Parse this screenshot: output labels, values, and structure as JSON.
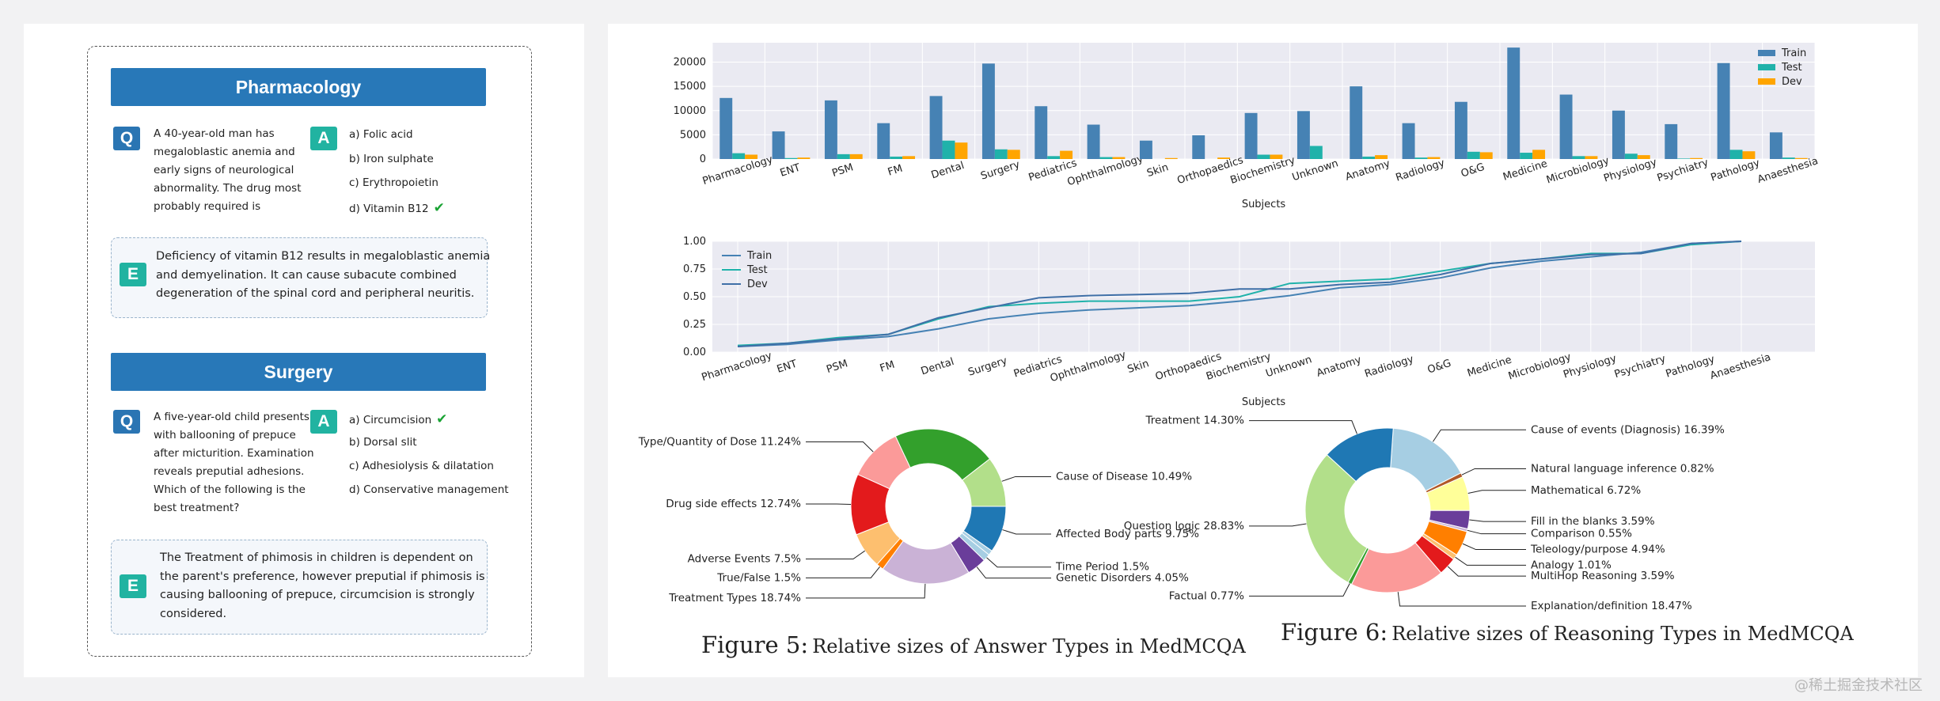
{
  "left": {
    "cards": [
      {
        "banner": "Pharmacology",
        "q_badge": "Q",
        "question_lines": [
          "A 40-year-old man has",
          "megaloblastic anemia and",
          "early signs of neurological",
          "abnormality. The drug most",
          "probably required is"
        ],
        "a_badge": "A",
        "options": [
          "a) Folic acid",
          "b) Iron sulphate",
          "c) Erythropoietin",
          "d) Vitamin B12"
        ],
        "correct_index": 3,
        "e_badge": "E",
        "explanation_lines": [
          "Deficiency of vitamin B12 results in megaloblastic anemia",
          "and demyelination. It can cause subacute combined",
          "degeneration of the spinal cord and peripheral neuritis."
        ]
      },
      {
        "banner": "Surgery",
        "q_badge": "Q",
        "question_lines": [
          "A five-year-old child presents",
          "with ballooning of prepuce",
          "after micturition. Examination",
          "reveals preputial adhesions.",
          "Which of the following is the",
          "best treatment?"
        ],
        "a_badge": "A",
        "options": [
          "a) Circumcision",
          "b) Dorsal slit",
          "c) Adhesiolysis & dilatation",
          "d) Conservative management"
        ],
        "correct_index": 0,
        "e_badge": "E",
        "explanation_lines": [
          "The Treatment of phimosis in children is dependent on",
          "the parent's preference, however preputial if phimosis is",
          "causing ballooning of prepuce, circumcision is strongly",
          "considered."
        ]
      }
    ]
  },
  "captions": {
    "fig5_num": "Figure 5:",
    "fig5_text": "Relative sizes of Answer Types in MedMCQA",
    "fig6_num": "Figure 6:",
    "fig6_text": "Relative sizes of Reasoning Types in MedMCQA"
  },
  "watermark": "@稀土掘金技术社区",
  "chart_data": [
    {
      "type": "bar",
      "xlabel": "Subjects",
      "ylabel": "",
      "ylim": [
        0,
        24000
      ],
      "yticks": [
        0,
        5000,
        10000,
        15000,
        20000
      ],
      "legend_position": "top-right",
      "grid": true,
      "categories": [
        "Pharmacology",
        "ENT",
        "PSM",
        "FM",
        "Dental",
        "Surgery",
        "Pediatrics",
        "Ophthalmology",
        "Skin",
        "Orthopaedics",
        "Biochemistry",
        "Unknown",
        "Anatomy",
        "Radiology",
        "O&G",
        "Medicine",
        "Microbiology",
        "Physiology",
        "Psychiatry",
        "Pathology",
        "Anaesthesia"
      ],
      "series": [
        {
          "name": "Train",
          "color": "#4682b4",
          "values": [
            12600,
            5700,
            12100,
            7400,
            13000,
            19700,
            10900,
            7100,
            3800,
            4900,
            9500,
            9900,
            15000,
            7400,
            11800,
            23000,
            13300,
            10000,
            7200,
            19800,
            5500
          ]
        },
        {
          "name": "Test",
          "color": "#20b2aa",
          "values": [
            1200,
            200,
            1000,
            500,
            3800,
            2000,
            600,
            400,
            0,
            0,
            900,
            2700,
            500,
            300,
            1500,
            1300,
            600,
            1100,
            100,
            1900,
            300
          ]
        },
        {
          "name": "Dev",
          "color": "#ffa500",
          "values": [
            900,
            300,
            1000,
            600,
            3400,
            1900,
            1700,
            400,
            200,
            300,
            900,
            0,
            800,
            400,
            1400,
            1900,
            600,
            800,
            200,
            1600,
            200
          ]
        }
      ]
    },
    {
      "type": "line",
      "xlabel": "Subjects",
      "ylabel": "",
      "ylim": [
        0,
        1
      ],
      "yticks": [
        "0.00",
        "0.25",
        "0.50",
        "0.75",
        "1.00"
      ],
      "legend_position": "top-left",
      "grid": true,
      "categories": [
        "Pharmacology",
        "ENT",
        "PSM",
        "FM",
        "Dental",
        "Surgery",
        "Pediatrics",
        "Ophthalmology",
        "Skin",
        "Orthopaedics",
        "Biochemistry",
        "Unknown",
        "Anatomy",
        "Radiology",
        "O&G",
        "Medicine",
        "Microbiology",
        "Physiology",
        "Psychiatry",
        "Pathology",
        "Anaesthesia"
      ],
      "series": [
        {
          "name": "Train",
          "color": "#4682b4",
          "values": [
            0.05,
            0.07,
            0.11,
            0.14,
            0.21,
            0.3,
            0.35,
            0.38,
            0.4,
            0.42,
            0.46,
            0.51,
            0.58,
            0.61,
            0.67,
            0.76,
            0.82,
            0.86,
            0.9,
            0.98,
            1.0
          ]
        },
        {
          "name": "Test",
          "color": "#20b2aa",
          "values": [
            0.06,
            0.08,
            0.13,
            0.16,
            0.3,
            0.41,
            0.44,
            0.46,
            0.46,
            0.46,
            0.5,
            0.62,
            0.64,
            0.66,
            0.73,
            0.8,
            0.84,
            0.89,
            0.89,
            0.97,
            1.0
          ]
        },
        {
          "name": "Dev",
          "color": "#3f6fa7",
          "values": [
            0.05,
            0.08,
            0.12,
            0.16,
            0.31,
            0.4,
            0.49,
            0.51,
            0.52,
            0.53,
            0.57,
            0.57,
            0.61,
            0.63,
            0.7,
            0.8,
            0.84,
            0.88,
            0.89,
            0.98,
            1.0
          ]
        }
      ]
    },
    {
      "type": "pie",
      "title": "",
      "donut": true,
      "slices": [
        {
          "label": "Affected Body parts 9.75%",
          "value": 9.75,
          "color": "#1f78b4"
        },
        {
          "label": "",
          "value": 1.0,
          "color": "#a6cee3"
        },
        {
          "label": "Time Period 1.5%",
          "value": 1.5,
          "color": "#a6cee3"
        },
        {
          "label": "Genetic Disorders 4.05%",
          "value": 4.05,
          "color": "#6a3d9a"
        },
        {
          "label": "Treatment Types 18.74%",
          "value": 18.74,
          "color": "#cab2d6"
        },
        {
          "label": "True/False 1.5%",
          "value": 1.5,
          "color": "#ff7f00"
        },
        {
          "label": "Adverse Events 7.5%",
          "value": 7.5,
          "color": "#fdbf6f"
        },
        {
          "label": "Drug side effects 12.74%",
          "value": 12.74,
          "color": "#e31a1c"
        },
        {
          "label": "Type/Quantity of Dose 11.24%",
          "value": 11.24,
          "color": "#fb9a99"
        },
        {
          "label": "",
          "value": 21.5,
          "color": "#33a02c"
        },
        {
          "label": "Cause of Disease 10.49%",
          "value": 10.49,
          "color": "#b2df8a"
        }
      ]
    },
    {
      "type": "pie",
      "title": "",
      "donut": true,
      "slices": [
        {
          "label": "Cause of events (Diagnosis) 16.39%",
          "value": 16.39,
          "color": "#a6cee3"
        },
        {
          "label": "Natural language inference 0.82%",
          "value": 0.82,
          "color": "#b15928"
        },
        {
          "label": "Mathematical 6.72%",
          "value": 6.72,
          "color": "#ffff99"
        },
        {
          "label": "Fill in the blanks 3.59%",
          "value": 3.59,
          "color": "#6a3d9a"
        },
        {
          "label": "Comparison 0.55%",
          "value": 0.55,
          "color": "#cab2d6"
        },
        {
          "label": "Teleology/purpose 4.94%",
          "value": 4.94,
          "color": "#ff7f00"
        },
        {
          "label": "Analogy 1.01%",
          "value": 1.01,
          "color": "#fdbf6f"
        },
        {
          "label": "MultiHop Reasoning 3.59%",
          "value": 3.59,
          "color": "#e31a1c"
        },
        {
          "label": "Explanation/definition 18.47%",
          "value": 18.47,
          "color": "#fb9a99"
        },
        {
          "label": "Factual 0.77%",
          "value": 0.77,
          "color": "#33a02c"
        },
        {
          "label": "Question logic 28.83%",
          "value": 28.83,
          "color": "#b2df8a"
        },
        {
          "label": "Treatment 14.30%",
          "value": 14.3,
          "color": "#1f78b4"
        }
      ]
    }
  ]
}
